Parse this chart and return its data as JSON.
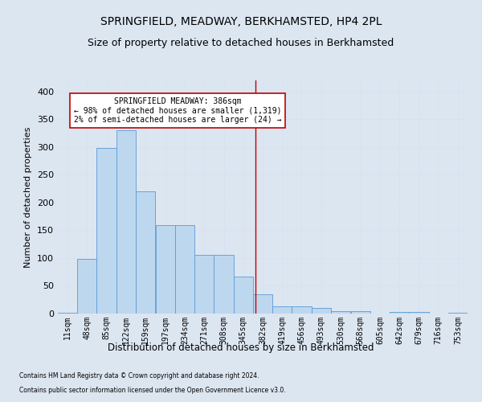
{
  "title": "SPRINGFIELD, MEADWAY, BERKHAMSTED, HP4 2PL",
  "subtitle": "Size of property relative to detached houses in Berkhamsted",
  "xlabel": "Distribution of detached houses by size in Berkhamsted",
  "ylabel": "Number of detached properties",
  "footnote1": "Contains HM Land Registry data © Crown copyright and database right 2024.",
  "footnote2": "Contains public sector information licensed under the Open Government Licence v3.0.",
  "bin_edges": [
    11,
    48,
    85,
    122,
    159,
    197,
    234,
    271,
    308,
    345,
    382,
    419,
    456,
    493,
    530,
    568,
    605,
    642,
    679,
    716,
    753
  ],
  "bar_heights": [
    2,
    99,
    299,
    330,
    220,
    160,
    160,
    106,
    106,
    67,
    35,
    13,
    13,
    10,
    5,
    5,
    0,
    3,
    3,
    0,
    2
  ],
  "bar_color": "#bdd7ee",
  "bar_edge_color": "#5b9bd5",
  "vline_x": 386,
  "vline_color": "#c00000",
  "annotation_text": "SPRINGFIELD MEADWAY: 386sqm\n← 98% of detached houses are smaller (1,319)\n2% of semi-detached houses are larger (24) →",
  "annotation_box_color": "#ffffff",
  "annotation_box_edge_color": "#c00000",
  "ylim": [
    0,
    420
  ],
  "yticks": [
    0,
    50,
    100,
    150,
    200,
    250,
    300,
    350,
    400
  ],
  "grid_color": "#d9e1f2",
  "background_color": "#dce6f1",
  "title_fontsize": 10,
  "subtitle_fontsize": 9,
  "tick_label_fontsize": 7,
  "ylabel_fontsize": 8,
  "xlabel_fontsize": 8.5,
  "footnote_fontsize": 5.5
}
